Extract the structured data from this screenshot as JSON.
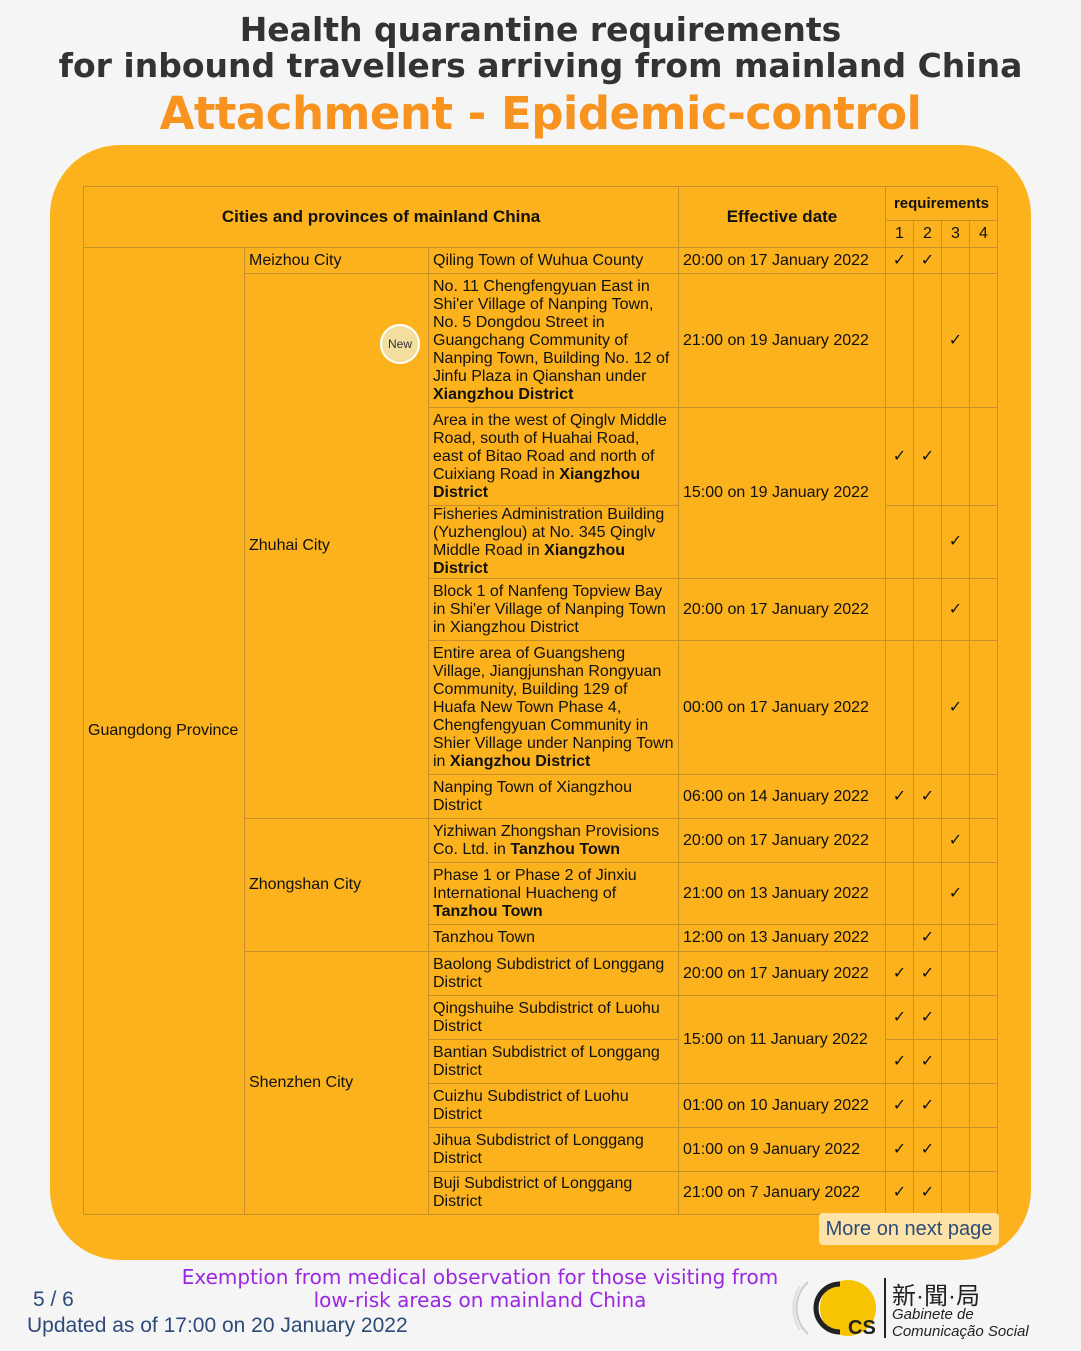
{
  "header": {
    "title_line1": "Health quarantine requirements",
    "title_line2": "for inbound travellers arriving from mainland China",
    "subtitle": "Attachment - Epidemic-control requirements"
  },
  "table": {
    "col_region": "Cities and provinces of mainland China",
    "col_date": "Effective date",
    "col_req": "requirements",
    "req_numbers": [
      "1",
      "2",
      "3",
      "4"
    ],
    "check_symbol": "✓",
    "province": "Guangdong Province",
    "cities": [
      {
        "name": "Meizhou City",
        "rows": 1
      },
      {
        "name": "Zhuhai City",
        "rows": 6
      },
      {
        "name": "Zhongshan City",
        "rows": 3
      },
      {
        "name": "Shenzhen City",
        "rows": 6
      }
    ],
    "rows": [
      {
        "area": [
          {
            "t": "Qiling Town of Wuhua County"
          }
        ],
        "date": "20:00 on 17 January 2022",
        "date_span": 1,
        "checks": [
          1,
          2
        ]
      },
      {
        "area": [
          {
            "t": "No. 11 Chengfengyuan East in Shi'er Village of Nanping Town, No. 5 Dongdou Street in Guangchang Community of Nanping Town, Building No. 12 of Jinfu Plaza in Qianshan under "
          },
          {
            "t": "Xiangzhou District",
            "b": true
          }
        ],
        "date": "21:00 on 19 January 2022",
        "date_span": 1,
        "checks": [
          3
        ],
        "badge": "New"
      },
      {
        "area": [
          {
            "t": "Area in the west of Qinglv Middle Road, south of Huahai Road, east of Bitao Road and north of Cuixiang Road in "
          },
          {
            "t": "Xiangzhou District",
            "b": true
          }
        ],
        "date": "15:00 on 19 January 2022",
        "date_span": 2,
        "checks": [
          1,
          2
        ]
      },
      {
        "area": [
          {
            "t": "Fisheries Administration Building (Yuzhenglou) at No. 345 Qinglv Middle Road in "
          },
          {
            "t": "Xiangzhou District",
            "b": true
          }
        ],
        "checks": [
          3
        ]
      },
      {
        "area": [
          {
            "t": "Block 1 of Nanfeng Topview Bay in Shi'er Village of Nanping Town in Xiangzhou District"
          }
        ],
        "date": "20:00 on 17 January 2022",
        "date_span": 1,
        "checks": [
          3
        ]
      },
      {
        "area": [
          {
            "t": "Entire area of Guangsheng Village, Jiangjunshan Rongyuan Community, Building 129 of Huafa New Town Phase 4, Chengfengyuan Community in Shier Village under Nanping Town in "
          },
          {
            "t": "Xiangzhou District",
            "b": true
          }
        ],
        "date": "00:00 on 17 January 2022",
        "date_span": 1,
        "checks": [
          3
        ]
      },
      {
        "area": [
          {
            "t": "Nanping Town of Xiangzhou District"
          }
        ],
        "date": "06:00 on 14 January 2022",
        "date_span": 1,
        "checks": [
          1,
          2
        ]
      },
      {
        "area": [
          {
            "t": "Yizhiwan Zhongshan Provisions Co. Ltd. in "
          },
          {
            "t": "Tanzhou Town",
            "b": true
          }
        ],
        "date": "20:00 on 17 January 2022",
        "date_span": 1,
        "checks": [
          3
        ]
      },
      {
        "area": [
          {
            "t": "Phase 1 or Phase 2 of Jinxiu International Huacheng of "
          },
          {
            "t": "Tanzhou Town",
            "b": true
          }
        ],
        "date": "21:00 on 13 January 2022",
        "date_span": 1,
        "checks": [
          3
        ]
      },
      {
        "area": [
          {
            "t": "Tanzhou Town"
          }
        ],
        "date": "12:00 on 13 January 2022",
        "date_span": 1,
        "checks": [
          2
        ]
      },
      {
        "area": [
          {
            "t": "Baolong Subdistrict of Longgang District"
          }
        ],
        "date": "20:00 on 17 January 2022",
        "date_span": 1,
        "checks": [
          1,
          2
        ]
      },
      {
        "area": [
          {
            "t": "Qingshuihe Subdistrict of Luohu District"
          }
        ],
        "date": "15:00 on 11 January 2022",
        "date_span": 2,
        "checks": [
          1,
          2
        ]
      },
      {
        "area": [
          {
            "t": "Bantian Subdistrict of Longgang District"
          }
        ],
        "checks": [
          1,
          2
        ]
      },
      {
        "area": [
          {
            "t": "Cuizhu Subdistrict of Luohu District"
          }
        ],
        "date": "01:00 on 10 January 2022",
        "date_span": 1,
        "checks": [
          1,
          2
        ]
      },
      {
        "area": [
          {
            "t": "Jihua Subdistrict of Longgang District"
          }
        ],
        "date": "01:00 on 9 January 2022",
        "date_span": 1,
        "checks": [
          1,
          2
        ]
      },
      {
        "area": [
          {
            "t": "Buji Subdistrict of Longgang District"
          }
        ],
        "date": "21:00 on 7 January 2022",
        "date_span": 1,
        "checks": [
          1,
          2
        ]
      }
    ]
  },
  "more_button": "More on next page",
  "footer": {
    "section_title": "Exemption from medical observation for those visiting from low-risk areas on mainland China",
    "page": "5 / 6",
    "updated": "Updated as of 17:00 on 20 January 2022"
  },
  "logo": {
    "chinese": "新·聞·局",
    "portuguese_line1": "Gabinete de",
    "portuguese_line2": "Comunicação Social",
    "mark": "GCS"
  },
  "colors": {
    "panel": "#fbb21c",
    "subtitle": "#f7931e",
    "footer_title": "#9b27e0",
    "text_blue": "#2c4b78"
  }
}
